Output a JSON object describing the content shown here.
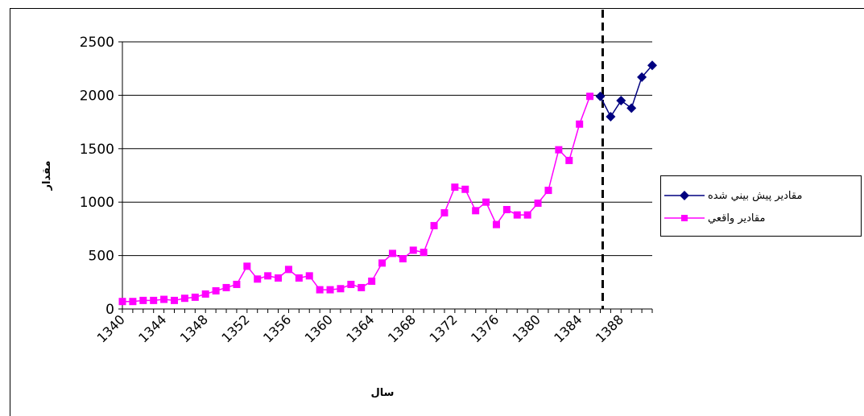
{
  "chart_data": {
    "type": "line",
    "title": "",
    "xlabel": "سال",
    "ylabel": "مقدار",
    "x_tick_labels": [
      "1340",
      "1344",
      "1348",
      "1352",
      "1356",
      "1360",
      "1364",
      "1368",
      "1372",
      "1376",
      "1380",
      "1384",
      "1388"
    ],
    "ylim": [
      0,
      2500
    ],
    "y_ticks": [
      0,
      500,
      1000,
      1500,
      2000,
      2500
    ],
    "xlim": [
      1340,
      1391
    ],
    "grid": "horizontal",
    "legend_position": "right",
    "forecast_divider_year": 1386,
    "series": [
      {
        "name": "مقادير پيش بيني شده",
        "color": "#000080",
        "marker": "diamond",
        "points": [
          [
            1386,
            1990
          ],
          [
            1387,
            1800
          ],
          [
            1388,
            1950
          ],
          [
            1389,
            1880
          ],
          [
            1390,
            2170
          ],
          [
            1391,
            2280
          ]
        ]
      },
      {
        "name": "مقادير واقعي",
        "color": "#ff00ff",
        "marker": "square",
        "points": [
          [
            1340,
            70
          ],
          [
            1341,
            70
          ],
          [
            1342,
            80
          ],
          [
            1343,
            80
          ],
          [
            1344,
            90
          ],
          [
            1345,
            80
          ],
          [
            1346,
            100
          ],
          [
            1347,
            110
          ],
          [
            1348,
            140
          ],
          [
            1349,
            170
          ],
          [
            1350,
            200
          ],
          [
            1351,
            230
          ],
          [
            1352,
            400
          ],
          [
            1353,
            280
          ],
          [
            1354,
            310
          ],
          [
            1355,
            290
          ],
          [
            1356,
            370
          ],
          [
            1357,
            290
          ],
          [
            1358,
            310
          ],
          [
            1359,
            180
          ],
          [
            1360,
            180
          ],
          [
            1361,
            190
          ],
          [
            1362,
            230
          ],
          [
            1363,
            200
          ],
          [
            1364,
            260
          ],
          [
            1365,
            430
          ],
          [
            1366,
            520
          ],
          [
            1367,
            470
          ],
          [
            1368,
            550
          ],
          [
            1369,
            530
          ],
          [
            1370,
            780
          ],
          [
            1371,
            900
          ],
          [
            1372,
            1140
          ],
          [
            1373,
            1120
          ],
          [
            1374,
            920
          ],
          [
            1375,
            1000
          ],
          [
            1376,
            790
          ],
          [
            1377,
            930
          ],
          [
            1378,
            880
          ],
          [
            1379,
            880
          ],
          [
            1380,
            990
          ],
          [
            1381,
            1110
          ],
          [
            1382,
            1490
          ],
          [
            1383,
            1390
          ],
          [
            1384,
            1730
          ],
          [
            1385,
            1990
          ]
        ]
      }
    ]
  }
}
